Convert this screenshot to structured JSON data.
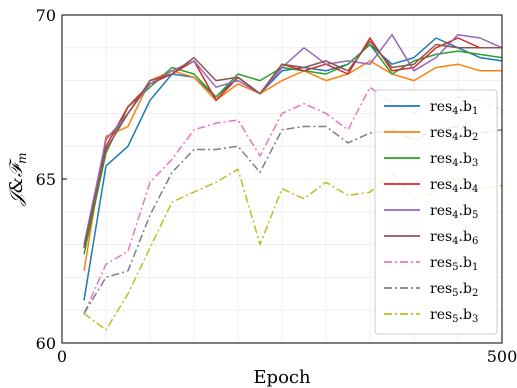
{
  "chart_data": {
    "type": "line",
    "xlabel": "Epoch",
    "ylabel": "𝒥&ℱ",
    "ylabel_sub": "m",
    "xlim": [
      0,
      500
    ],
    "ylim": [
      60,
      70
    ],
    "xticks": [
      0,
      500
    ],
    "yticks": [
      60,
      65,
      70
    ],
    "grid": true,
    "legend_position": "right",
    "x": [
      25,
      50,
      75,
      100,
      125,
      150,
      175,
      200,
      225,
      250,
      275,
      300,
      325,
      350,
      375,
      400,
      425,
      450,
      475,
      500
    ],
    "series": [
      {
        "name": "res4.b1",
        "base": "res",
        "sub1": "4",
        "mid": ".b",
        "sub2": "1",
        "color": "#1f77b4",
        "style": "solid",
        "values": [
          61.3,
          65.4,
          66.0,
          67.4,
          68.2,
          68.1,
          67.5,
          68.1,
          67.6,
          68.3,
          68.4,
          68.3,
          68.5,
          69.1,
          68.5,
          68.7,
          69.3,
          69.0,
          68.7,
          68.6
        ]
      },
      {
        "name": "res4.b2",
        "base": "res",
        "sub1": "4",
        "mid": ".b",
        "sub2": "2",
        "color": "#ff7f0e",
        "style": "solid",
        "values": [
          62.2,
          66.3,
          66.6,
          68.0,
          68.3,
          68.1,
          67.4,
          67.9,
          67.6,
          68.0,
          68.3,
          68.0,
          68.2,
          68.6,
          68.2,
          68.0,
          68.4,
          68.5,
          68.3,
          68.3
        ]
      },
      {
        "name": "res4.b3",
        "base": "res",
        "sub1": "4",
        "mid": ".b",
        "sub2": "3",
        "color": "#2ca02c",
        "style": "solid",
        "values": [
          62.7,
          65.8,
          67.2,
          67.8,
          68.4,
          68.2,
          67.5,
          68.2,
          68.0,
          68.4,
          68.3,
          68.2,
          68.5,
          69.1,
          68.2,
          68.6,
          68.8,
          68.9,
          68.8,
          68.7
        ]
      },
      {
        "name": "res4.b4",
        "base": "res",
        "sub1": "4",
        "mid": ".b",
        "sub2": "4",
        "color": "#d62728",
        "style": "solid",
        "values": [
          62.9,
          66.0,
          67.2,
          67.9,
          68.2,
          68.6,
          67.4,
          68.1,
          67.6,
          68.5,
          68.3,
          68.5,
          68.2,
          69.3,
          68.3,
          68.4,
          69.0,
          69.3,
          69.0,
          69.0
        ]
      },
      {
        "name": "res4.b5",
        "base": "res",
        "sub1": "4",
        "mid": ".b",
        "sub2": "5",
        "color": "#9467bd",
        "style": "solid",
        "values": [
          63.0,
          66.2,
          67.0,
          67.9,
          68.3,
          68.6,
          67.8,
          68.0,
          67.6,
          68.4,
          69.0,
          68.5,
          68.6,
          68.5,
          69.4,
          68.3,
          68.7,
          69.4,
          69.3,
          69.0
        ]
      },
      {
        "name": "res4.b6",
        "base": "res",
        "sub1": "4",
        "mid": ".b",
        "sub2": "6",
        "color": "#8c564b",
        "style": "solid",
        "values": [
          62.9,
          65.9,
          67.0,
          68.0,
          68.2,
          68.7,
          68.0,
          68.1,
          67.6,
          68.5,
          68.4,
          68.6,
          68.3,
          69.2,
          68.4,
          68.5,
          69.1,
          69.0,
          69.0,
          69.0
        ]
      },
      {
        "name": "res5.b1",
        "base": "res",
        "sub1": "5",
        "mid": ".b",
        "sub2": "1",
        "color": "#e377c2",
        "style": "dashdot",
        "values": [
          60.9,
          62.4,
          62.8,
          64.9,
          65.6,
          66.5,
          66.7,
          66.8,
          65.7,
          67.0,
          67.3,
          67.0,
          66.5,
          67.8,
          67.3,
          67.0,
          67.4,
          67.5,
          67.4,
          67.1
        ]
      },
      {
        "name": "res5.b2",
        "base": "res",
        "sub1": "5",
        "mid": ".b",
        "sub2": "2",
        "color": "#7f7f7f",
        "style": "dashdot",
        "values": [
          60.9,
          62.0,
          62.2,
          63.9,
          65.2,
          65.9,
          65.9,
          66.0,
          65.2,
          66.5,
          66.6,
          66.6,
          66.1,
          66.4,
          66.5,
          66.2,
          66.5,
          66.6,
          66.4,
          66.5
        ]
      },
      {
        "name": "res5.b3",
        "base": "res",
        "sub1": "5",
        "mid": ".b",
        "sub2": "3",
        "color": "#bcbd22",
        "style": "dashdot",
        "values": [
          60.9,
          60.4,
          61.5,
          62.9,
          64.3,
          64.6,
          64.9,
          65.3,
          63.0,
          64.7,
          64.4,
          64.9,
          64.5,
          64.6,
          65.2,
          64.4,
          64.6,
          65.0,
          64.7,
          64.8
        ]
      }
    ]
  }
}
